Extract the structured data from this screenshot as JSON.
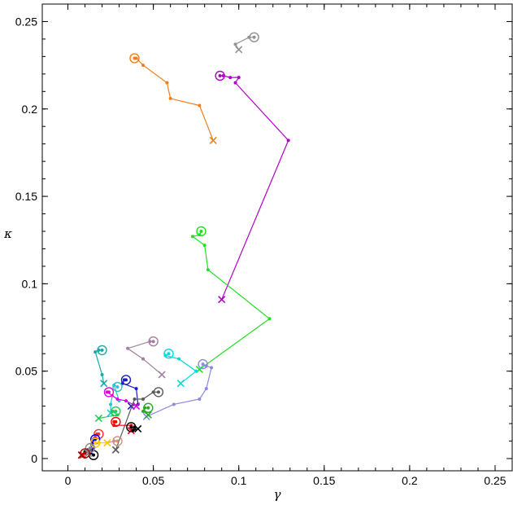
{
  "chart_data": {
    "type": "scatter",
    "xlabel": "γ",
    "ylabel": "κ",
    "xlim": [
      -0.015,
      0.26
    ],
    "ylim": [
      -0.007,
      0.26
    ],
    "xticks": [
      0,
      0.05,
      0.1,
      0.15,
      0.2,
      0.25
    ],
    "xtick_labels": [
      "0",
      "0.05",
      "0.1",
      "0.15",
      "0.2",
      "0.25"
    ],
    "yticks": [
      0,
      0.05,
      0.1,
      0.15,
      0.2,
      0.25
    ],
    "ytick_labels": [
      "0",
      "0.05",
      "0.1",
      "0.15",
      "0.2",
      "0.25"
    ],
    "grid": false,
    "markers": {
      "start": "open circle",
      "end": "cross"
    },
    "series": [
      {
        "color": "#f07f1b",
        "points": [
          [
            0.039,
            0.229
          ],
          [
            0.04,
            0.229
          ],
          [
            0.044,
            0.225
          ],
          [
            0.058,
            0.215
          ],
          [
            0.06,
            0.206
          ],
          [
            0.077,
            0.202
          ],
          [
            0.085,
            0.182
          ]
        ]
      },
      {
        "color": "#b000c8",
        "points": [
          [
            0.089,
            0.219
          ],
          [
            0.091,
            0.219
          ],
          [
            0.095,
            0.218
          ],
          [
            0.1,
            0.218
          ],
          [
            0.098,
            0.215
          ],
          [
            0.129,
            0.182
          ],
          [
            0.09,
            0.091
          ]
        ]
      },
      {
        "color": "#909090",
        "points": [
          [
            0.109,
            0.241
          ],
          [
            0.106,
            0.241
          ],
          [
            0.098,
            0.237
          ],
          [
            0.1,
            0.234
          ]
        ]
      },
      {
        "color": "#22dd22",
        "points": [
          [
            0.078,
            0.13
          ],
          [
            0.077,
            0.128
          ],
          [
            0.073,
            0.127
          ],
          [
            0.08,
            0.122
          ],
          [
            0.082,
            0.108
          ],
          [
            0.118,
            0.08
          ],
          [
            0.077,
            0.051
          ]
        ]
      },
      {
        "color": "#a080a0",
        "points": [
          [
            0.05,
            0.067
          ],
          [
            0.048,
            0.067
          ],
          [
            0.035,
            0.063
          ],
          [
            0.044,
            0.057
          ],
          [
            0.055,
            0.048
          ]
        ]
      },
      {
        "color": "#1fa5a5",
        "points": [
          [
            0.02,
            0.062
          ],
          [
            0.018,
            0.062
          ],
          [
            0.016,
            0.061
          ],
          [
            0.02,
            0.048
          ],
          [
            0.021,
            0.043
          ]
        ]
      },
      {
        "color": "#00d8e0",
        "points": [
          [
            0.059,
            0.06
          ],
          [
            0.057,
            0.059
          ],
          [
            0.065,
            0.057
          ],
          [
            0.075,
            0.05
          ],
          [
            0.066,
            0.043
          ]
        ]
      },
      {
        "color": "#8a8ae0",
        "points": [
          [
            0.079,
            0.054
          ],
          [
            0.081,
            0.053
          ],
          [
            0.084,
            0.052
          ],
          [
            0.081,
            0.04
          ],
          [
            0.077,
            0.034
          ],
          [
            0.062,
            0.031
          ],
          [
            0.046,
            0.024
          ]
        ]
      },
      {
        "color": "#1a1acc",
        "points": [
          [
            0.034,
            0.045
          ],
          [
            0.033,
            0.045
          ],
          [
            0.032,
            0.043
          ],
          [
            0.04,
            0.04
          ],
          [
            0.041,
            0.031
          ],
          [
            0.037,
            0.03
          ]
        ]
      },
      {
        "color": "#21c8cc",
        "points": [
          [
            0.029,
            0.041
          ],
          [
            0.027,
            0.042
          ],
          [
            0.03,
            0.033
          ],
          [
            0.026,
            0.036
          ],
          [
            0.025,
            0.031
          ],
          [
            0.025,
            0.026
          ]
        ]
      },
      {
        "color": "#e000e0",
        "points": [
          [
            0.024,
            0.038
          ],
          [
            0.023,
            0.038
          ],
          [
            0.029,
            0.034
          ],
          [
            0.034,
            0.033
          ],
          [
            0.04,
            0.03
          ]
        ]
      },
      {
        "color": "#5a5a5a",
        "points": [
          [
            0.053,
            0.038
          ],
          [
            0.05,
            0.038
          ],
          [
            0.044,
            0.034
          ],
          [
            0.039,
            0.034
          ],
          [
            0.028,
            0.005
          ]
        ]
      },
      {
        "color": "#2aaa2a",
        "points": [
          [
            0.047,
            0.029
          ],
          [
            0.045,
            0.029
          ],
          [
            0.044,
            0.027
          ],
          [
            0.047,
            0.025
          ]
        ]
      },
      {
        "color": "#22cc55",
        "points": [
          [
            0.028,
            0.027
          ],
          [
            0.026,
            0.027
          ],
          [
            0.029,
            0.025
          ],
          [
            0.018,
            0.023
          ]
        ]
      },
      {
        "color": "#ff0000",
        "points": [
          [
            0.028,
            0.021
          ],
          [
            0.027,
            0.021
          ],
          [
            0.027,
            0.019
          ],
          [
            0.037,
            0.019
          ],
          [
            0.037,
            0.016
          ]
        ]
      },
      {
        "color": "#000000",
        "points": [
          [
            0.037,
            0.018
          ],
          [
            0.039,
            0.018
          ],
          [
            0.038,
            0.016
          ],
          [
            0.041,
            0.017
          ]
        ]
      },
      {
        "color": "#ff3030",
        "points": [
          [
            0.018,
            0.014
          ],
          [
            0.017,
            0.014
          ],
          [
            0.016,
            0.012
          ],
          [
            0.014,
            0.008
          ],
          [
            0.015,
            0.006
          ],
          [
            0.01,
            0.003
          ],
          [
            0.009,
            0.002
          ]
        ]
      },
      {
        "color": "#d09080",
        "points": [
          [
            0.029,
            0.01
          ],
          [
            0.027,
            0.01
          ],
          [
            0.023,
            0.009
          ]
        ]
      },
      {
        "color": "#0000dd",
        "points": [
          [
            0.016,
            0.011
          ],
          [
            0.015,
            0.011
          ],
          [
            0.014,
            0.008
          ],
          [
            0.013,
            0.004
          ]
        ]
      },
      {
        "color": "#ffcc00",
        "points": [
          [
            0.016,
            0.009
          ],
          [
            0.018,
            0.009
          ],
          [
            0.023,
            0.009
          ]
        ]
      },
      {
        "color": "#000000",
        "points": [
          [
            0.015,
            0.002
          ],
          [
            0.013,
            0.003
          ],
          [
            0.01,
            0.004
          ],
          [
            0.008,
            0.002
          ]
        ]
      },
      {
        "color": "#888888",
        "points": [
          [
            0.013,
            0.006
          ],
          [
            0.012,
            0.005
          ],
          [
            0.012,
            0.003
          ]
        ]
      },
      {
        "color": "#b00000",
        "points": [
          [
            0.01,
            0.003
          ],
          [
            0.008,
            0.002
          ]
        ]
      }
    ]
  }
}
